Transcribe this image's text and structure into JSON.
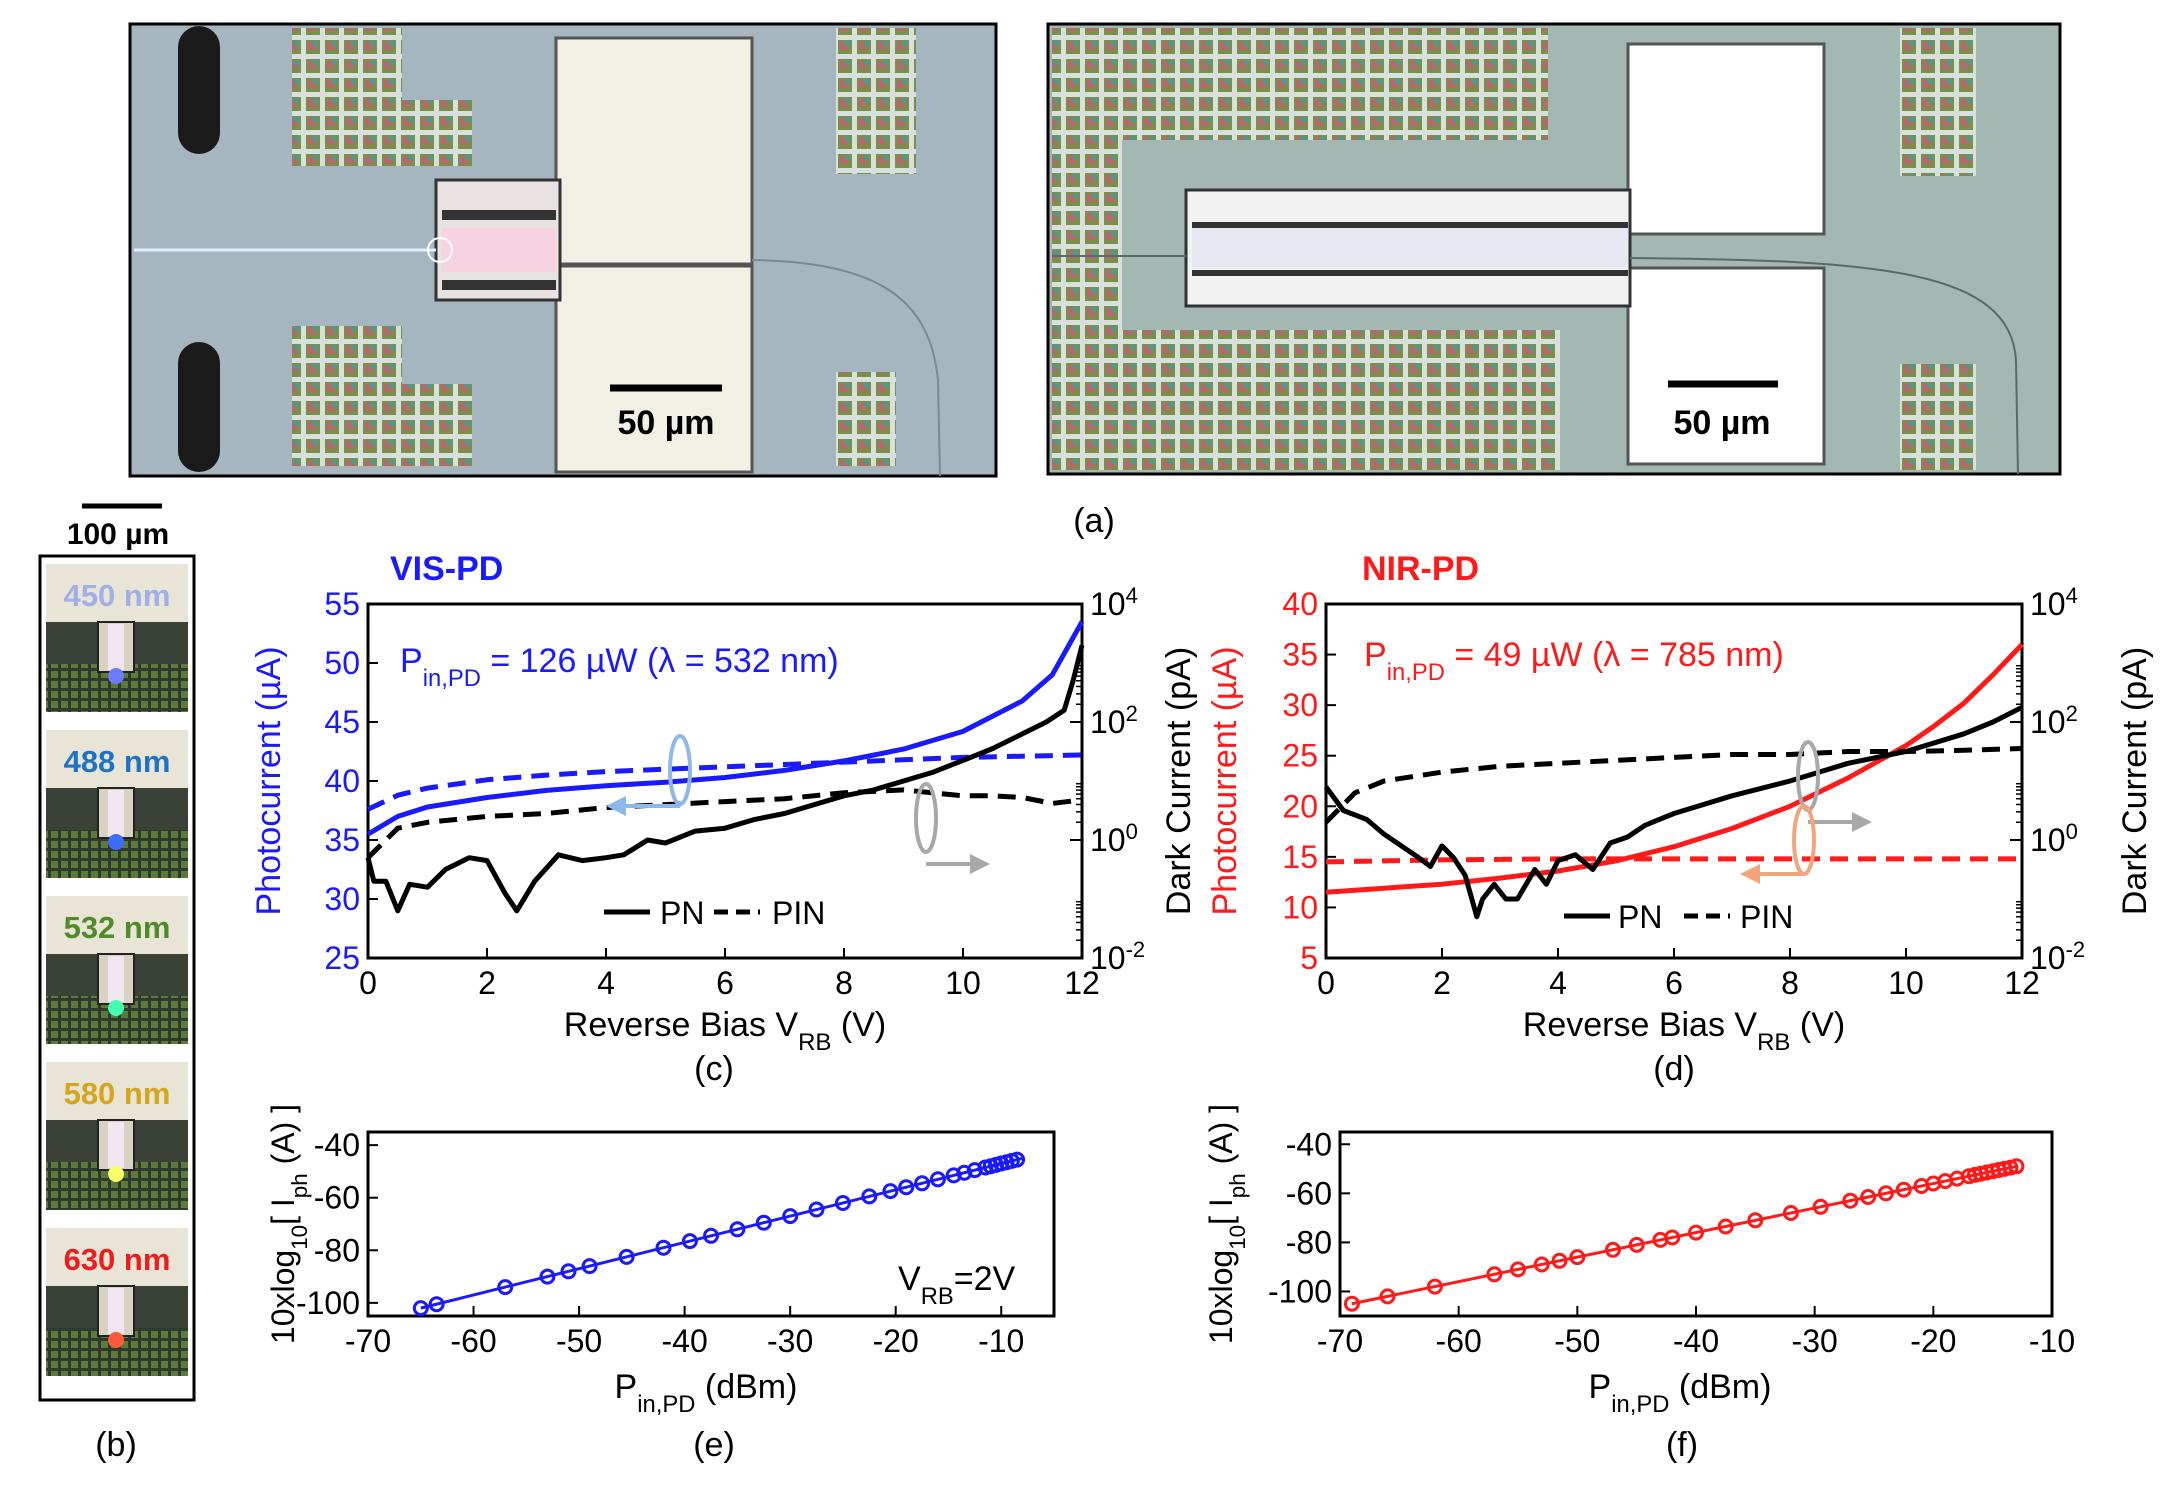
{
  "panel_a": {
    "caption": "(a)",
    "left_scale": "50 µm",
    "right_scale": "50 µm"
  },
  "panel_b": {
    "caption": "(b)",
    "scale": "100 µm",
    "wavelengths": [
      {
        "label": "450 nm",
        "color": "#9fb0e6",
        "spot": "#6d7dff"
      },
      {
        "label": "488 nm",
        "color": "#1f72c4",
        "spot": "#3a6cff"
      },
      {
        "label": "532 nm",
        "color": "#4f8a2c",
        "spot": "#42ffb0"
      },
      {
        "label": "580 nm",
        "color": "#d6a51c",
        "spot": "#f6ff6a"
      },
      {
        "label": "630 nm",
        "color": "#ee1c1c",
        "spot": "#ff5a3a"
      }
    ]
  },
  "panel_c": {
    "caption": "(c)",
    "title": "VIS-PD",
    "title_color": "#1a1aff",
    "power_annotation": "P<sub>in,PD</sub> = 126 µW (λ = 532 nm)",
    "ylabel_left": "Photocurrent (µA)",
    "ylabel_right": "Dark Current (pA)",
    "xlabel": "Reverse Bias V<tspan baseline-shift='sub' font-size='24'>RB</tspan> (V)",
    "legend_pn": "PN",
    "legend_pin": "PIN"
  },
  "panel_d": {
    "caption": "(d)",
    "title": "NIR-PD",
    "title_color": "#ff1a1a",
    "power_annotation": "P<sub>in,PD</sub> = 49 µW (λ = 785 nm)",
    "ylabel_left": "Photocurrent (µA)",
    "ylabel_right": "Dark Current (pA)",
    "xlabel": "Reverse Bias V<tspan baseline-shift='sub' font-size='24'>RB</tspan> (V)",
    "legend_pn": "PN",
    "legend_pin": "PIN"
  },
  "panel_e": {
    "caption": "(e)",
    "annotation": "V<sub>RB</sub>=2V",
    "ylabel": "10xlog<sub>10</sub>[ I<sub>ph</sub> (A) ]",
    "xlabel": "P<sub>in,PD</sub> (dBm)"
  },
  "panel_f": {
    "caption": "(f)",
    "ylabel": "10xlog<sub>10</sub>[ I<sub>ph</sub> (A) ]",
    "xlabel": "P<sub>in,PD</sub> (dBm)"
  },
  "chart_data": [
    {
      "id": "c",
      "type": "line",
      "title": "VIS-PD",
      "xlabel": "Reverse Bias VRB (V)",
      "ylabel": "Photocurrent (µA)",
      "y2label": "Dark Current (pA)",
      "xlim": [
        0,
        12
      ],
      "ylim": [
        25,
        55
      ],
      "y2lim_log10": [
        -2,
        4
      ],
      "xticks": [
        0,
        2,
        4,
        6,
        8,
        10,
        12
      ],
      "yticks": [
        25,
        30,
        35,
        40,
        45,
        50,
        55
      ],
      "y2ticks": [
        "10^-2",
        "10^0",
        "10^2",
        "10^4"
      ],
      "series": [
        {
          "name": "Photocurrent PN",
          "axis": "left",
          "style": "solid",
          "color": "#1a1aff",
          "x": [
            0,
            0.5,
            1,
            2,
            3,
            4,
            5,
            6,
            7,
            8,
            9,
            10,
            11,
            11.5,
            12
          ],
          "y": [
            35.5,
            37,
            37.8,
            38.6,
            39.2,
            39.6,
            39.9,
            40.3,
            40.9,
            41.7,
            42.7,
            44.2,
            46.8,
            49,
            53.5
          ]
        },
        {
          "name": "Photocurrent PIN",
          "axis": "left",
          "style": "dashed",
          "color": "#1a1aff",
          "x": [
            0,
            0.5,
            1,
            2,
            3,
            4,
            5,
            6,
            7,
            8,
            9,
            10,
            11,
            12
          ],
          "y": [
            37.6,
            38.8,
            39.4,
            40.1,
            40.5,
            40.8,
            41.0,
            41.2,
            41.4,
            41.6,
            41.8,
            42.0,
            42.1,
            42.2
          ]
        },
        {
          "name": "Dark current PN",
          "axis": "right",
          "style": "solid",
          "color": "#000000",
          "x": [
            0,
            0.1,
            0.3,
            0.5,
            0.7,
            1,
            1.3,
            1.7,
            2,
            2.3,
            2.5,
            2.8,
            3.2,
            3.6,
            4,
            4.3,
            4.7,
            5,
            5.5,
            6,
            6.5,
            7,
            7.5,
            8,
            8.5,
            9,
            9.5,
            10,
            10.5,
            11,
            11.4,
            11.7,
            11.85,
            12
          ],
          "y": [
            -0.3,
            -0.7,
            -0.7,
            -1.2,
            -0.75,
            -0.8,
            -0.5,
            -0.3,
            -0.35,
            -0.9,
            -1.2,
            -0.7,
            -0.25,
            -0.35,
            -0.3,
            -0.25,
            0,
            -0.05,
            0.15,
            0.2,
            0.35,
            0.45,
            0.6,
            0.75,
            0.85,
            1.0,
            1.15,
            1.35,
            1.55,
            1.8,
            2.0,
            2.2,
            2.7,
            3.3
          ]
        },
        {
          "name": "Dark current PIN",
          "axis": "right",
          "style": "dashed",
          "color": "#000000",
          "x": [
            0,
            0.5,
            1,
            2,
            3,
            4,
            5,
            6,
            7,
            8,
            9,
            10,
            10.5,
            11,
            11.5,
            12
          ],
          "y": [
            -0.3,
            0.2,
            0.3,
            0.4,
            0.45,
            0.55,
            0.6,
            0.65,
            0.7,
            0.8,
            0.85,
            0.75,
            0.75,
            0.72,
            0.62,
            0.68
          ]
        }
      ]
    },
    {
      "id": "d",
      "type": "line",
      "title": "NIR-PD",
      "xlabel": "Reverse Bias VRB (V)",
      "ylabel": "Photocurrent (µA)",
      "y2label": "Dark Current (pA)",
      "xlim": [
        0,
        12
      ],
      "ylim": [
        5,
        40
      ],
      "y2lim_log10": [
        -2,
        4
      ],
      "xticks": [
        0,
        2,
        4,
        6,
        8,
        10,
        12
      ],
      "yticks": [
        5,
        10,
        15,
        20,
        25,
        30,
        35,
        40
      ],
      "y2ticks": [
        "10^-2",
        "10^0",
        "10^2",
        "10^4"
      ],
      "series": [
        {
          "name": "Photocurrent PN",
          "axis": "left",
          "style": "solid",
          "color": "#ff1a1a",
          "x": [
            0,
            1,
            2,
            3,
            4,
            5,
            6,
            7,
            8,
            9,
            10,
            10.5,
            11,
            11.5,
            12
          ],
          "y": [
            11.5,
            11.9,
            12.3,
            12.9,
            13.6,
            14.6,
            16.0,
            17.8,
            20.0,
            22.8,
            26.0,
            28.0,
            30.2,
            33.0,
            36.0
          ]
        },
        {
          "name": "Photocurrent PIN",
          "axis": "left",
          "style": "dashed",
          "color": "#ff1a1a",
          "x": [
            0,
            2,
            4,
            6,
            8,
            10,
            12
          ],
          "y": [
            14.5,
            14.7,
            14.8,
            14.8,
            14.8,
            14.8,
            14.8
          ]
        },
        {
          "name": "Dark current PN",
          "axis": "right",
          "style": "solid",
          "color": "#000000",
          "x": [
            0,
            0.3,
            0.7,
            1,
            1.3,
            1.6,
            1.8,
            2,
            2.2,
            2.4,
            2.6,
            2.7,
            2.9,
            3.1,
            3.3,
            3.6,
            3.8,
            4,
            4.3,
            4.6,
            4.9,
            5.2,
            5.5,
            6,
            7,
            8,
            9,
            10,
            11,
            11.5,
            12
          ],
          "y": [
            0.9,
            0.5,
            0.35,
            0.1,
            -0.1,
            -0.3,
            -0.45,
            -0.1,
            -0.3,
            -0.6,
            -1.3,
            -1.0,
            -0.75,
            -1.0,
            -1.0,
            -0.5,
            -0.75,
            -0.35,
            -0.25,
            -0.5,
            -0.05,
            0.05,
            0.25,
            0.45,
            0.75,
            1.0,
            1.3,
            1.5,
            1.8,
            2.0,
            2.25
          ]
        },
        {
          "name": "Dark current PIN",
          "axis": "right",
          "style": "dashed",
          "color": "#000000",
          "x": [
            0,
            0.5,
            1,
            2,
            3,
            4,
            5,
            6,
            7,
            8,
            9,
            10,
            11,
            12
          ],
          "y": [
            0.3,
            0.8,
            1.0,
            1.15,
            1.25,
            1.3,
            1.35,
            1.4,
            1.45,
            1.45,
            1.5,
            1.5,
            1.52,
            1.55
          ]
        }
      ]
    },
    {
      "id": "e",
      "type": "scatter",
      "xlabel": "Pin,PD (dBm)",
      "ylabel": "10xlog10[ Iph (A) ]",
      "xlim": [
        -70,
        -5
      ],
      "ylim": [
        -105,
        -35
      ],
      "xticks": [
        -70,
        -60,
        -50,
        -40,
        -30,
        -20,
        -10
      ],
      "yticks": [
        -100,
        -80,
        -60,
        -40
      ],
      "fit": {
        "x": [
          -65,
          -8
        ],
        "y": [
          -102,
          -45
        ]
      },
      "color": "#1a1aff",
      "x": [
        -65,
        -63.5,
        -57,
        -53,
        -51,
        -49,
        -45.5,
        -42,
        -39.5,
        -37.5,
        -35,
        -32.5,
        -30,
        -27.5,
        -25,
        -22.5,
        -20.5,
        -19,
        -17.5,
        -16,
        -14.5,
        -13.5,
        -12.5,
        -11.5,
        -11,
        -10.5,
        -10,
        -9.5,
        -9,
        -8.5
      ],
      "y": [
        -102,
        -100.5,
        -94,
        -90,
        -88,
        -86,
        -82.5,
        -79,
        -76.5,
        -74.5,
        -72,
        -69.5,
        -67,
        -64.5,
        -62,
        -59.5,
        -57.5,
        -56,
        -54.5,
        -53,
        -51.5,
        -50.5,
        -49.5,
        -48.5,
        -48,
        -47.5,
        -47,
        -46.5,
        -46,
        -45.5
      ]
    },
    {
      "id": "f",
      "type": "scatter",
      "xlabel": "Pin,PD (dBm)",
      "ylabel": "10xlog10[ Iph (A) ]",
      "xlim": [
        -70,
        -10
      ],
      "ylim": [
        -110,
        -35
      ],
      "xticks": [
        -70,
        -60,
        -50,
        -40,
        -30,
        -20,
        -10
      ],
      "yticks": [
        -100,
        -80,
        -60,
        -40
      ],
      "fit": {
        "x": [
          -69,
          -13
        ],
        "y": [
          -105,
          -49
        ]
      },
      "color": "#ff1a1a",
      "x": [
        -69,
        -66,
        -62,
        -57,
        -55,
        -53,
        -51.5,
        -50,
        -47,
        -45,
        -43,
        -42,
        -40,
        -37.5,
        -35,
        -32,
        -29.5,
        -27,
        -25.5,
        -24,
        -22.5,
        -21,
        -20,
        -19,
        -18,
        -17,
        -16.5,
        -16,
        -15.5,
        -15,
        -14.5,
        -14,
        -13.5,
        -13
      ],
      "y": [
        -105,
        -102,
        -98,
        -93,
        -91,
        -89,
        -87.5,
        -86,
        -83,
        -81,
        -79,
        -78,
        -76,
        -73.5,
        -71,
        -68,
        -65.5,
        -63,
        -61.5,
        -60,
        -58.5,
        -57,
        -56,
        -55,
        -54,
        -53,
        -52.5,
        -52,
        -51.5,
        -51,
        -50.5,
        -50,
        -49.5,
        -49
      ]
    }
  ]
}
